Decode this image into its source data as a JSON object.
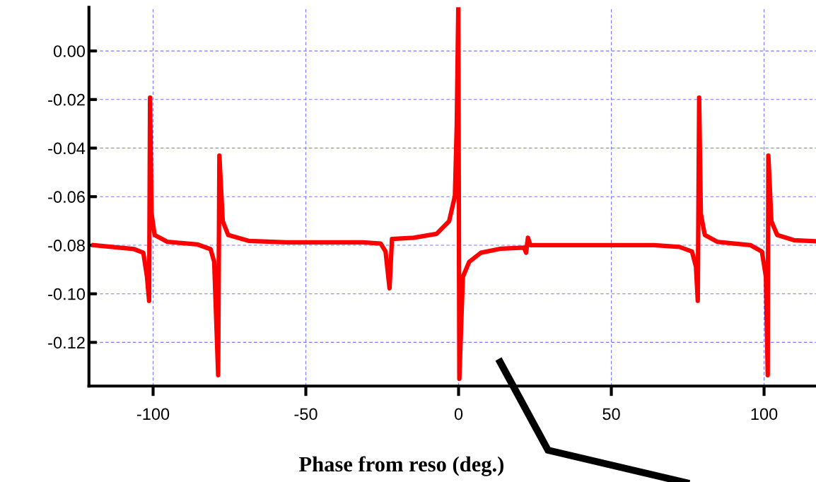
{
  "chart_data": {
    "type": "line",
    "xlabel": "Phase from reso (deg.)",
    "xlim": [
      -121,
      117
    ],
    "xticks": [
      -100,
      -50,
      0,
      50,
      100
    ],
    "ylim": [
      -0.138,
      0.018
    ],
    "yticks": [
      {
        "value": 0,
        "label": "0.00"
      },
      {
        "value": -0.02,
        "label": "-0.02"
      },
      {
        "value": -0.04,
        "label": "-0.04"
      },
      {
        "value": -0.06,
        "label": "-0.06"
      },
      {
        "value": -0.08,
        "label": "-0.08"
      },
      {
        "value": -0.1,
        "label": "-0.10"
      },
      {
        "value": -0.12,
        "label": "-0.12"
      }
    ],
    "grid": true,
    "marker": "none",
    "line_style": "solid",
    "series": [
      {
        "color": "#ff0000",
        "x": [
          -119.5,
          -106.2,
          -103.2,
          -102,
          -101.3,
          -101.0,
          -100.5,
          -99.5,
          -95.3,
          -85.4,
          -81.2,
          -80,
          -78.7,
          -78.3,
          -77.2,
          -75.4,
          -68.7,
          -56.3,
          -31.3,
          -25.5,
          -23.9,
          -22.6,
          -21.8,
          -14.7,
          -7.2,
          -3.1,
          -1.2,
          -0.6,
          -0.1,
          0.25,
          1.4,
          3.5,
          7.3,
          13.9,
          21.4,
          22.1,
          22.7,
          23.5,
          38.9,
          63.9,
          72.3,
          76.4,
          77.7,
          78.3,
          78.75,
          79.3,
          80.6,
          84.75,
          95.6,
          99.3,
          100.6,
          101.2,
          101.4,
          102.4,
          104.3,
          109.75,
          117
        ],
        "values": [
          -0.08,
          -0.0816,
          -0.0831,
          -0.093,
          -0.1029,
          -0.0192,
          -0.067,
          -0.0758,
          -0.0786,
          -0.0797,
          -0.0816,
          -0.0868,
          -0.1335,
          -0.0431,
          -0.0701,
          -0.0758,
          -0.0782,
          -0.0788,
          -0.0788,
          -0.0793,
          -0.0826,
          -0.0977,
          -0.0774,
          -0.0769,
          -0.0753,
          -0.0701,
          -0.0597,
          -0.0306,
          0.0177,
          -0.135,
          -0.093,
          -0.0868,
          -0.0831,
          -0.0814,
          -0.081,
          -0.0831,
          -0.0769,
          -0.08,
          -0.08,
          -0.08,
          -0.0807,
          -0.0826,
          -0.0888,
          -0.1029,
          -0.0192,
          -0.067,
          -0.0758,
          -0.0786,
          -0.08,
          -0.0826,
          -0.093,
          -0.1335,
          -0.0431,
          -0.0701,
          -0.0758,
          -0.0779,
          -0.0784
        ]
      }
    ]
  }
}
